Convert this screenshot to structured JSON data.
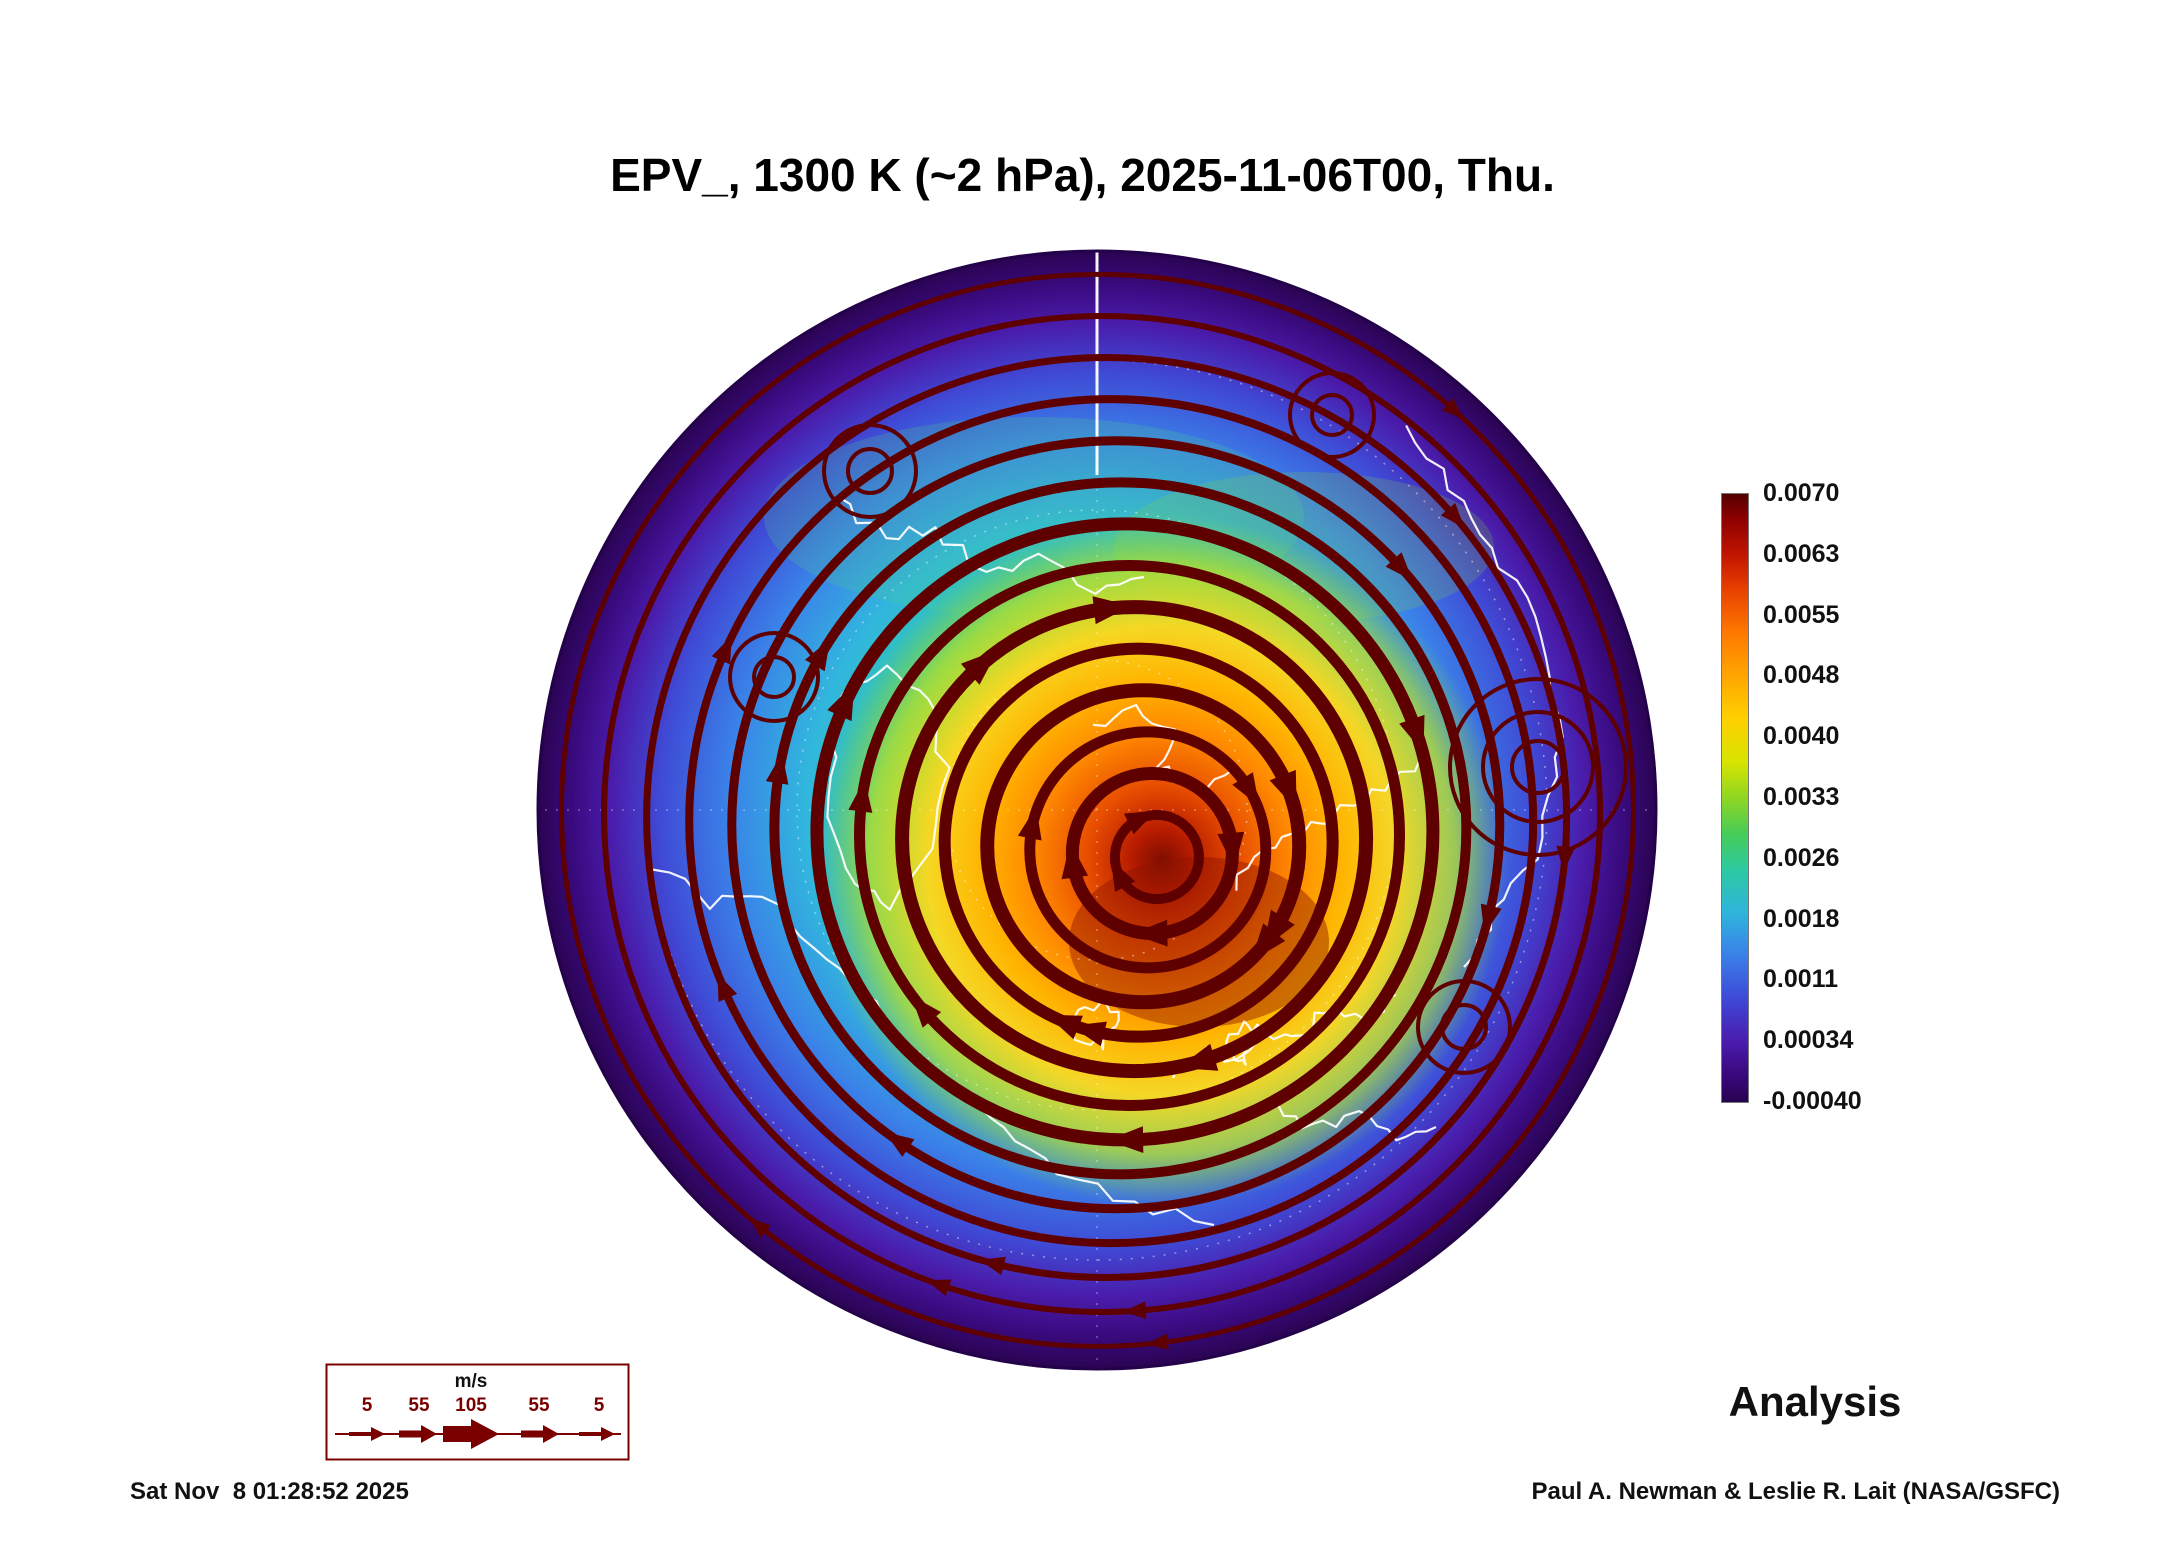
{
  "title": "EPV_, 1300 K (~2 hPa), 2025-11-06T00, Thu.",
  "analysis_label": "Analysis",
  "timestamp": "Sat Nov  8 01:28:52 2025",
  "credit": "Paul A. Newman & Leslie R. Lait (NASA/GSFC)",
  "colorbar": {
    "ticks": [
      "0.0070",
      "0.0063",
      "0.0055",
      "0.0048",
      "0.0040",
      "0.0033",
      "0.0026",
      "0.0018",
      "0.0011",
      "0.00034",
      "-0.00040"
    ]
  },
  "wind_legend": {
    "unit": "m/s",
    "values": [
      "5",
      "55",
      "105",
      "55",
      "5"
    ]
  },
  "colors": {
    "streamline": "#5e0000",
    "coastline": "#ffffff",
    "legend_accent": "#7a0000",
    "rim_purple": "#2a0453",
    "vortex_core": "#7f0d00"
  },
  "chart_data": {
    "type": "heatmap",
    "title": "EPV_, 1300 K (~2 hPa), 2025-11-06T00, Thu.",
    "field": "EPV",
    "level": "1300 K (~2 hPa)",
    "valid_time": "2025-11-06T00, Thu.",
    "product": "Analysis",
    "colorbar_ticks": [
      0.007,
      0.0063,
      0.0055,
      0.0048,
      0.004,
      0.0033,
      0.0026,
      0.0018,
      0.0011,
      0.00034,
      -0.0004
    ],
    "colorbar_range": [
      -0.0004,
      0.007
    ],
    "colorbar_orientation": "vertical-right",
    "wind_scale_ms": [
      5,
      55,
      105,
      55,
      5
    ],
    "wind_scale_unit": "m/s",
    "layout_hint": "north-polar circular map; EPV maximum (dark red vortex core) offset just below/right of pole; concentric dark-maroon wind streamlines around vortex; purple low-EPV rim; white coastlines and dotted graticule",
    "generated_stamp": "Sat Nov  8 01:28:52 2025",
    "credit": "Paul A. Newman & Leslie R. Lait (NASA/GSFC)"
  }
}
